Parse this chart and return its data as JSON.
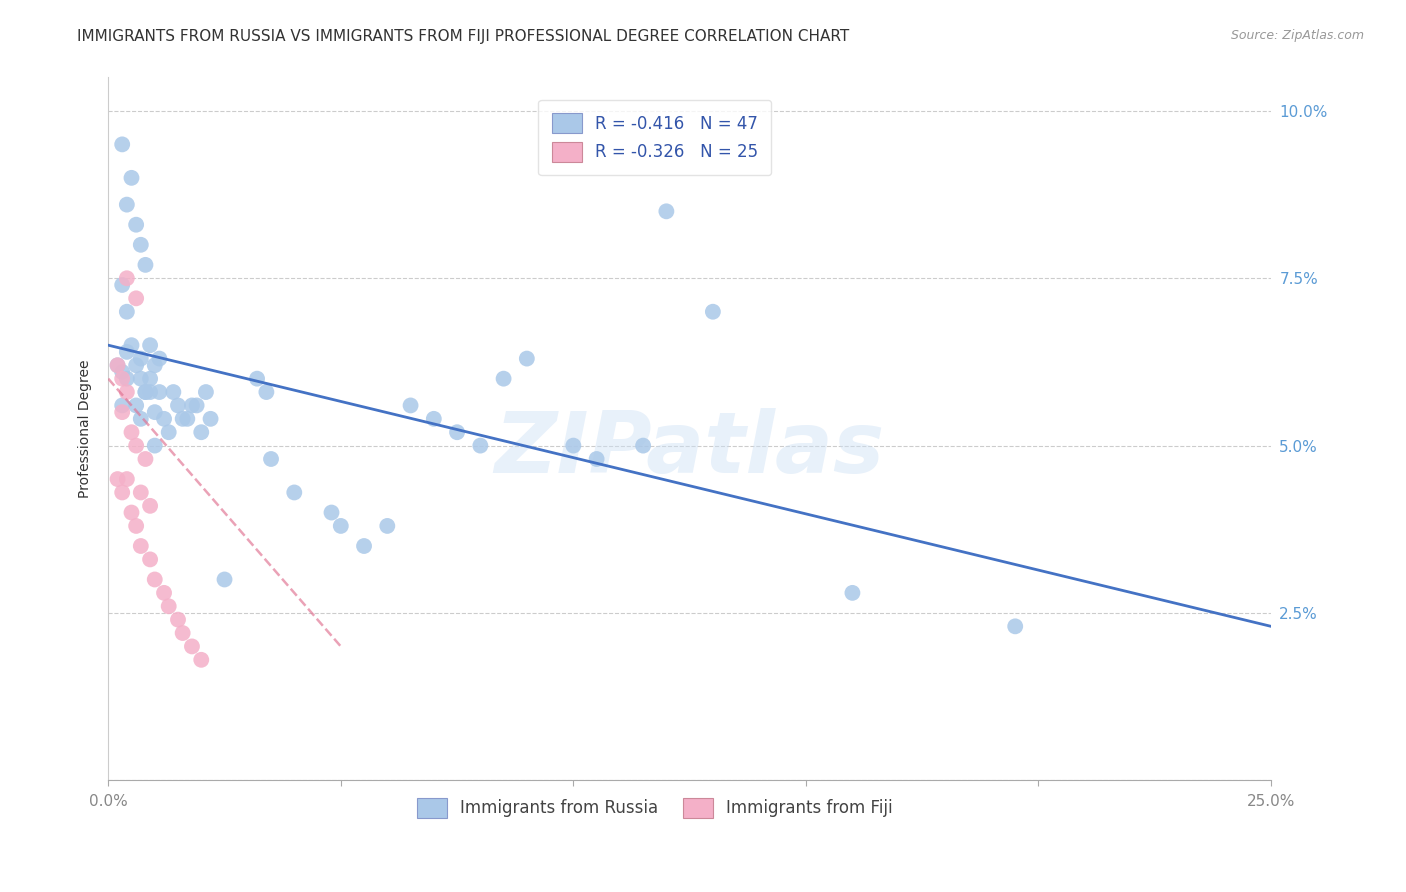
{
  "title": "IMMIGRANTS FROM RUSSIA VS IMMIGRANTS FROM FIJI PROFESSIONAL DEGREE CORRELATION CHART",
  "source": "Source: ZipAtlas.com",
  "ylabel": "Professional Degree",
  "xlim": [
    0.0,
    0.25
  ],
  "ylim": [
    0.0,
    0.105
  ],
  "yticks": [
    0.0,
    0.025,
    0.05,
    0.075,
    0.1
  ],
  "ytick_labels_right": [
    "",
    "2.5%",
    "5.0%",
    "7.5%",
    "10.0%"
  ],
  "xticks_shown": [
    0.0,
    0.25
  ],
  "xtick_labels_shown": [
    "0.0%",
    "25.0%"
  ],
  "xticks_minor": [
    0.05,
    0.1,
    0.15,
    0.2
  ],
  "legend_russia_text": "R = -0.416   N = 47",
  "legend_fiji_text": "R = -0.326   N = 25",
  "color_russia": "#aac8e8",
  "color_fiji": "#f4b0c8",
  "line_color_russia": "#4472c4",
  "line_color_fiji": "#e07090",
  "watermark": "ZIPatlas",
  "legend_text_color": "#3355aa",
  "russia_x": [
    0.005,
    0.007,
    0.003,
    0.004,
    0.006,
    0.008,
    0.004,
    0.003,
    0.009,
    0.011,
    0.002,
    0.007,
    0.009,
    0.01,
    0.006,
    0.007,
    0.01,
    0.008,
    0.009,
    0.011,
    0.015,
    0.016,
    0.014,
    0.013,
    0.01,
    0.012,
    0.032,
    0.034,
    0.018,
    0.022,
    0.019,
    0.021,
    0.017,
    0.02,
    0.065,
    0.1,
    0.105,
    0.115,
    0.07,
    0.075,
    0.08,
    0.055,
    0.06,
    0.048,
    0.05,
    0.16,
    0.195
  ],
  "russia_y": [
    0.065,
    0.063,
    0.061,
    0.064,
    0.062,
    0.058,
    0.06,
    0.056,
    0.065,
    0.063,
    0.062,
    0.06,
    0.058,
    0.062,
    0.056,
    0.054,
    0.055,
    0.058,
    0.06,
    0.058,
    0.056,
    0.054,
    0.058,
    0.052,
    0.05,
    0.054,
    0.06,
    0.058,
    0.056,
    0.054,
    0.056,
    0.058,
    0.054,
    0.052,
    0.056,
    0.05,
    0.048,
    0.05,
    0.054,
    0.052,
    0.05,
    0.035,
    0.038,
    0.04,
    0.038,
    0.028,
    0.023
  ],
  "russia_x2": [
    0.003,
    0.005,
    0.004,
    0.006,
    0.007,
    0.008,
    0.003,
    0.004,
    0.09,
    0.13,
    0.12,
    0.085,
    0.035,
    0.04,
    0.025
  ],
  "russia_y2": [
    0.095,
    0.09,
    0.086,
    0.083,
    0.08,
    0.077,
    0.074,
    0.07,
    0.063,
    0.07,
    0.085,
    0.06,
    0.048,
    0.043,
    0.03
  ],
  "fiji_x": [
    0.002,
    0.003,
    0.004,
    0.003,
    0.005,
    0.006,
    0.008,
    0.004,
    0.007,
    0.009,
    0.002,
    0.003,
    0.005,
    0.006,
    0.007,
    0.009,
    0.01,
    0.012,
    0.013,
    0.015,
    0.004,
    0.006,
    0.016,
    0.018,
    0.02
  ],
  "fiji_y": [
    0.062,
    0.06,
    0.058,
    0.055,
    0.052,
    0.05,
    0.048,
    0.045,
    0.043,
    0.041,
    0.045,
    0.043,
    0.04,
    0.038,
    0.035,
    0.033,
    0.03,
    0.028,
    0.026,
    0.024,
    0.075,
    0.072,
    0.022,
    0.02,
    0.018
  ],
  "title_fontsize": 11,
  "axis_label_fontsize": 10,
  "tick_fontsize": 11,
  "legend_fontsize": 12,
  "scatter_size": 130,
  "grid_color": "#cccccc",
  "text_color": "#333333",
  "tick_color": "#888888",
  "right_tick_color": "#5b9bd5"
}
